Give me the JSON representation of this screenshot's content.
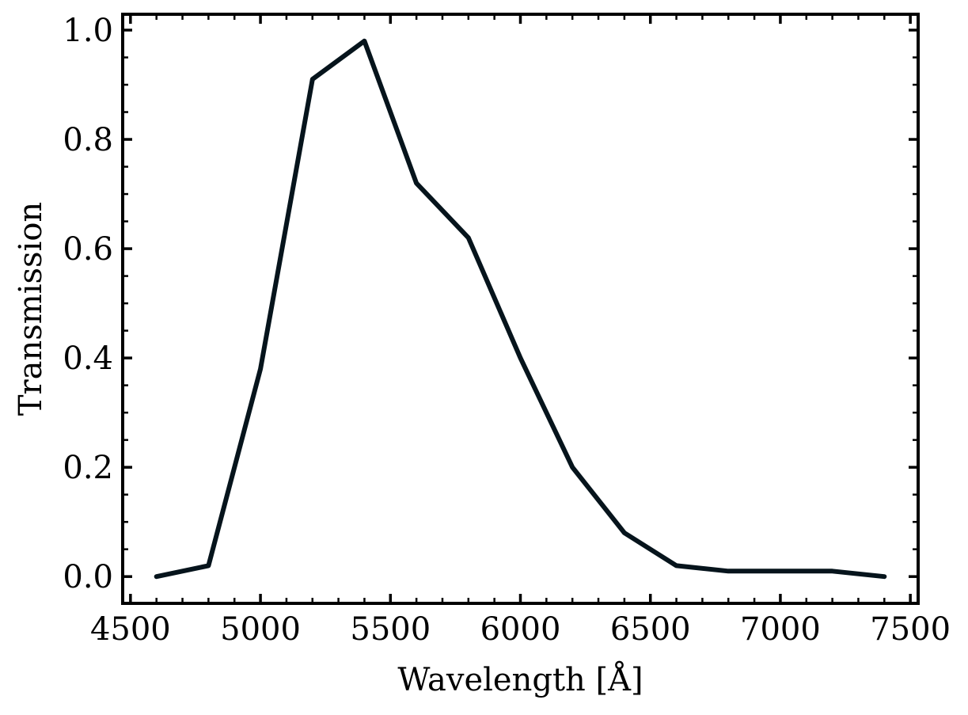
{
  "chart_data": {
    "type": "line",
    "title": "",
    "xlabel": "Wavelength [Å]",
    "ylabel": "Transmission",
    "xlim": [
      4470,
      7530
    ],
    "ylim": [
      -0.049,
      1.029
    ],
    "x_ticks": [
      4500,
      5000,
      5500,
      6000,
      6500,
      7000,
      7500
    ],
    "x_tick_labels": [
      "4500",
      "5000",
      "5500",
      "6000",
      "6500",
      "7000",
      "7500"
    ],
    "y_ticks": [
      0.0,
      0.2,
      0.4,
      0.6,
      0.8,
      1.0
    ],
    "y_tick_labels": [
      "0.0",
      "0.2",
      "0.4",
      "0.6",
      "0.8",
      "1.0"
    ],
    "x_minor_step": 100,
    "y_minor_step": 0.05,
    "grid": false,
    "series": [
      {
        "color": "#06141c",
        "x": [
          4600,
          4800,
          5000,
          5200,
          5400,
          5600,
          5800,
          6000,
          6200,
          6400,
          6600,
          6800,
          7000,
          7200,
          7400
        ],
        "y": [
          0.0,
          0.02,
          0.38,
          0.91,
          0.98,
          0.72,
          0.62,
          0.4,
          0.2,
          0.08,
          0.02,
          0.01,
          0.01,
          0.01,
          0.0
        ]
      }
    ]
  }
}
